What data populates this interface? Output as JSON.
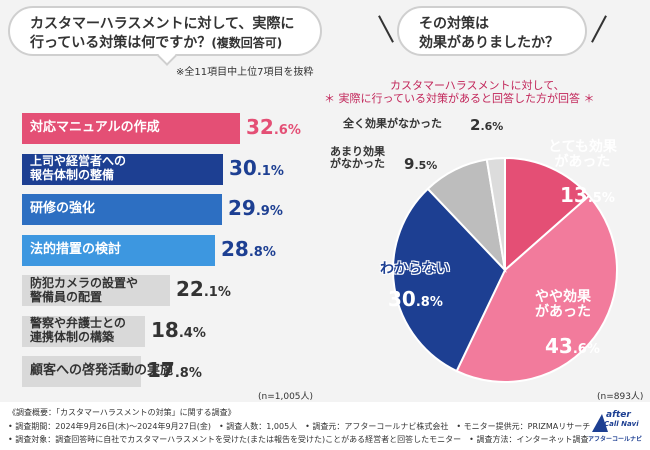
{
  "left_question": {
    "line1": "カスタマーハラスメントに対して、実際に",
    "line2": "行っている対策は何ですか？",
    "line2_suffix": "(複数回答可)"
  },
  "note": "※全11項目中上位7項目を抜粋",
  "right_question": {
    "line1": "その対策は",
    "line2": "効果がありましたか？"
  },
  "pie_caption": {
    "line1": "カスタマーハラスメントに対して、",
    "line2": "実際に行っている対策があると回答した方が回答"
  },
  "sample_left": "(n=1,005人)",
  "sample_right": "(n=893人)",
  "chart_data": [
    {
      "type": "bar",
      "orientation": "horizontal",
      "title": "カスタマーハラスメントに対して、実際に行っている対策は何ですか？(複数回答可)",
      "unit": "%",
      "categories": [
        "対応マニュアルの作成",
        "上司や経営者への報告体制の整備",
        "研修の強化",
        "法的措置の検討",
        "防犯カメラの設置や警備員の配置",
        "警察や弁護士との連携体制の構築",
        "顧客への啓発活動の実施"
      ],
      "label_lines": [
        [
          "対応マニュアルの作成"
        ],
        [
          "上司や経営者への",
          "報告体制の整備"
        ],
        [
          "研修の強化"
        ],
        [
          "法的措置の検討"
        ],
        [
          "防犯カメラの設置や",
          "警備員の配置"
        ],
        [
          "警察や弁護士との",
          "連携体制の構築"
        ],
        [
          "顧客への啓発活動の実施"
        ]
      ],
      "values": [
        32.6,
        30.1,
        29.9,
        28.8,
        22.1,
        18.4,
        17.8
      ],
      "value_int": [
        "32",
        "30",
        "29",
        "28",
        "22",
        "18",
        "17"
      ],
      "value_dec": [
        ".6",
        ".1",
        ".9",
        ".8",
        ".1",
        ".4",
        ".8"
      ],
      "colors": [
        "#e44f75",
        "#1d3f92",
        "#2d6fc2",
        "#3d97e0",
        "#d9d9d9",
        "#d9d9d9",
        "#d9d9d9"
      ],
      "value_colors": [
        "#e44f75",
        "#1d3f92",
        "#1d3f92",
        "#1d3f92",
        "#333333",
        "#333333",
        "#333333"
      ],
      "label_colors": [
        "#ffffff",
        "#ffffff",
        "#ffffff",
        "#ffffff",
        "#333333",
        "#333333",
        "#333333"
      ],
      "xlim": [
        0,
        40
      ]
    },
    {
      "type": "pie",
      "title": "その対策は効果がありましたか？",
      "unit": "%",
      "categories": [
        "とても効果があった",
        "やや効果があった",
        "わからない",
        "あまり効果がなかった",
        "全く効果がなかった"
      ],
      "values": [
        13.5,
        43.6,
        30.8,
        9.5,
        2.6
      ],
      "colors": [
        "#e44f75",
        "#f27b9c",
        "#1d3f92",
        "#bdbdbd",
        "#dcdcdc"
      ],
      "label_lines": [
        [
          "とても効果",
          "があった"
        ],
        [
          "やや効果",
          "があった"
        ],
        [
          "わからない"
        ],
        [
          "あまり効果",
          "がなかった"
        ],
        [
          "全く効果がなかった"
        ]
      ],
      "value_int": [
        "13",
        "43",
        "30",
        "9",
        "2"
      ],
      "value_dec": [
        ".5",
        ".6",
        ".8",
        ".5",
        ".6"
      ]
    }
  ],
  "footer": {
    "line1": "《調査概要：「カスタマーハラスメントの対策」に関する調査》",
    "line2": "• 調査期間：2024年9月26日(木)〜2024年9月27日(金)　• 調査人数：1,005人　• 調査元：アフターコールナビ株式会社　• モニター提供元：PRIZMAリサーチ",
    "line3": "• 調査対象：調査回答時に自社でカスタマーハラスメントを受けた(または報告を受けた)ことがある経営者と回答したモニター　• 調査方法：インターネット調査"
  },
  "logo": {
    "line1": "after",
    "line2": "Call Navi",
    "line3": "アフターコールナビ"
  }
}
